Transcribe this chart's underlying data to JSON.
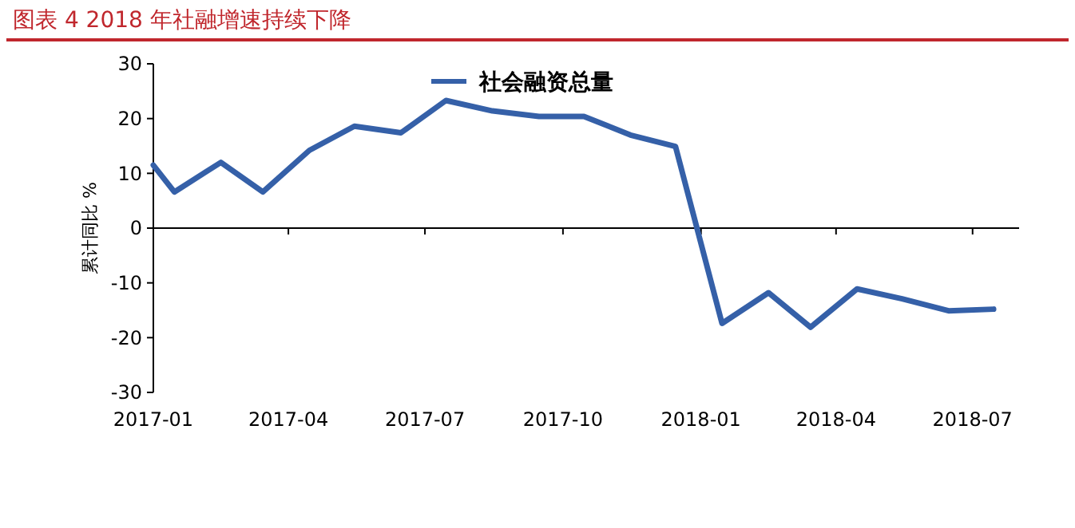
{
  "chart_data": {
    "type": "line",
    "title": "图表 4 2018 年社融增速持续下降",
    "ylabel": "累计同比 %",
    "series": [
      {
        "name": "社会融资总量",
        "color": "#3560a8",
        "x": [
          "2017-01-01",
          "2017-01-15",
          "2017-02-15",
          "2017-03-15",
          "2017-04-15",
          "2017-05-15",
          "2017-06-15",
          "2017-07-15",
          "2017-08-15",
          "2017-09-15",
          "2017-10-15",
          "2017-11-15",
          "2017-12-15",
          "2018-01-15",
          "2018-02-15",
          "2018-03-15",
          "2018-04-15",
          "2018-05-15",
          "2018-06-15",
          "2018-07-15"
        ],
        "values": [
          11.5,
          6.6,
          12.0,
          6.6,
          14.2,
          18.6,
          17.4,
          23.3,
          21.4,
          20.4,
          20.4,
          17.0,
          14.9,
          -17.4,
          -11.8,
          -18.1,
          -11.1,
          -12.9,
          -15.1,
          -14.8
        ]
      }
    ],
    "xlim": [
      "2017-01-01",
      "2018-08-01"
    ],
    "xticks": [
      {
        "value": "2017-01-01",
        "label": "2017-01"
      },
      {
        "value": "2017-04-01",
        "label": "2017-04"
      },
      {
        "value": "2017-07-01",
        "label": "2017-07"
      },
      {
        "value": "2017-10-01",
        "label": "2017-10"
      },
      {
        "value": "2018-01-01",
        "label": "2018-01"
      },
      {
        "value": "2018-04-01",
        "label": "2018-04"
      },
      {
        "value": "2018-07-01",
        "label": "2018-07"
      }
    ],
    "ylim": [
      -30,
      30
    ],
    "yticks": [
      -30,
      -20,
      -10,
      0,
      10,
      20,
      30
    ],
    "legend": "top",
    "line_style": "solid",
    "marker": "none"
  }
}
